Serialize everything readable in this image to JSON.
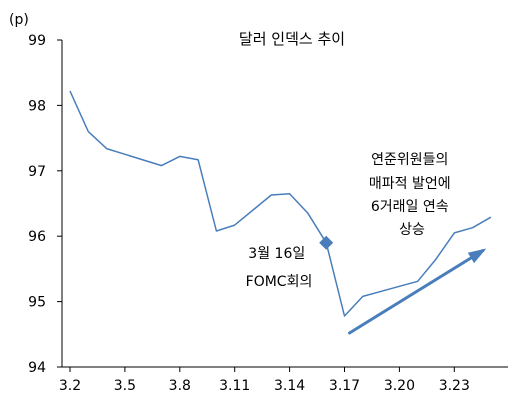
{
  "chart_data": {
    "type": "line",
    "title": "달러 인덱스 추이",
    "ylabel": "(p)",
    "xlabel": "",
    "ylim": [
      94,
      99
    ],
    "yticks": [
      94,
      95,
      96,
      97,
      98,
      99
    ],
    "grid": false,
    "x_ticks": [
      "3.2",
      "3.5",
      "3.8",
      "3.11",
      "3.14",
      "3.17",
      "3.20",
      "3.23"
    ],
    "series": [
      {
        "name": "",
        "color": "#4a7ebb",
        "x": [
          "3.2",
          "3.3",
          "3.4",
          "3.7",
          "3.8",
          "3.9",
          "3.10",
          "3.11",
          "3.13",
          "3.14",
          "3.15",
          "3.16",
          "3.17",
          "3.18",
          "3.21",
          "3.22",
          "3.23",
          "3.24",
          "3.25"
        ],
        "values": [
          98.22,
          97.6,
          97.34,
          97.08,
          97.22,
          97.17,
          96.08,
          96.17,
          96.63,
          96.65,
          96.35,
          95.9,
          94.78,
          95.08,
          95.31,
          95.65,
          96.05,
          96.13,
          96.29
        ]
      }
    ],
    "highlight_point": {
      "x": "3.16",
      "value": 95.9,
      "color": "#4a7ebb"
    },
    "annotations": {
      "fomc": [
        "3월 16일",
        "FOMC회의"
      ],
      "fed": [
        "연준위원들의",
        "매파적 발언에",
        "6거래일 연속",
        "상승"
      ]
    },
    "trend_arrow": {
      "from": "3.17",
      "to": "3.25",
      "color": "#4a7ebb"
    }
  }
}
